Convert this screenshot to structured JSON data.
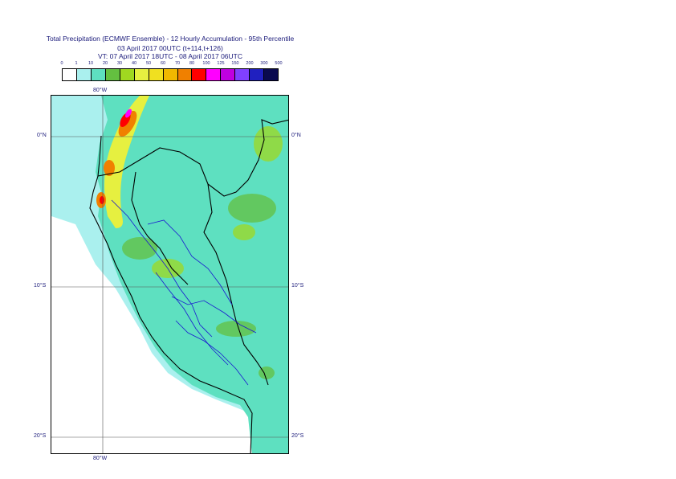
{
  "title": {
    "line1": "Total Precipitation (ECMWF Ensemble) - 12 Hourly Accumulation - 95th Percentile",
    "line2": "03 April 2017 00UTC (t+114,t+126)",
    "line3": "VT: 07 April 2017 18UTC - 08 April 2017 06UTC"
  },
  "legend": {
    "thresholds": [
      "0",
      "1",
      "10",
      "20",
      "30",
      "40",
      "50",
      "60",
      "70",
      "80",
      "100",
      "125",
      "150",
      "200",
      "300",
      "500"
    ],
    "colors": [
      "#ffffff",
      "#aaf0ee",
      "#5ee0c0",
      "#64c040",
      "#a0d820",
      "#e6f040",
      "#f0e020",
      "#f0b800",
      "#f08000",
      "#ff0000",
      "#ff00ff",
      "#c000e0",
      "#8040ff",
      "#2020c0",
      "#0a0a50"
    ]
  },
  "axes": {
    "lon_label": "80°W",
    "lat_labels": [
      "0°N",
      "10°S",
      "20°S"
    ]
  },
  "map": {
    "colors": {
      "ocean_light": "#aaf0ee",
      "ocean_white": "#ffffff",
      "land_teal": "#5ee0c0",
      "land_green": "#64c040",
      "land_lightgreen": "#a0d820",
      "peak_yellow": "#e6f040",
      "peak_orange": "#f08000",
      "peak_red": "#ff0000",
      "peak_magenta": "#ff00ff",
      "coastline": "#000000",
      "rivers": "#1a1ad0",
      "grid": "#555555"
    }
  }
}
